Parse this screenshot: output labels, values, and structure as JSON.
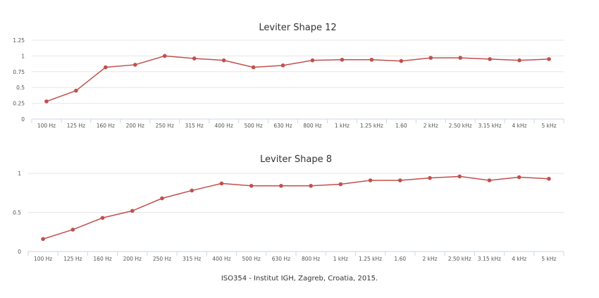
{
  "caption": "ISO354 - Institut IGH, Zagreb, Croatia, 2015.",
  "colors": {
    "series": "#c0504d",
    "grid": "#e6e6e6",
    "axis": "#ccd6eb"
  },
  "chart_data": [
    {
      "type": "line",
      "title": "Leviter Shape 12",
      "categories": [
        "100 Hz",
        "125 Hz",
        "160 Hz",
        "200 Hz",
        "250 Hz",
        "315 Hz",
        "400 Hz",
        "500 Hz",
        "630 Hz",
        "800 Hz",
        "1 kHz",
        "1.25 kHz",
        "1.60",
        "2 kHz",
        "2.50 kHz",
        "3.15 kHz",
        "4 kHz",
        "5 kHz"
      ],
      "series": [
        {
          "values": [
            0.28,
            0.45,
            0.82,
            0.86,
            1.0,
            0.96,
            0.93,
            0.82,
            0.85,
            0.93,
            0.94,
            0.94,
            0.92,
            0.97,
            0.97,
            0.95,
            0.93,
            0.95
          ]
        }
      ],
      "ylim": [
        0,
        1.25
      ],
      "yticks": [
        0,
        0.25,
        0.5,
        0.75,
        1,
        1.25
      ],
      "ytick_labels": [
        "0",
        "0.25",
        "0.5",
        "0.75",
        "1",
        "1.25"
      ],
      "grid": true,
      "legend": "none"
    },
    {
      "type": "line",
      "title": "Leviter Shape 8",
      "categories": [
        "100 Hz",
        "125 Hz",
        "160 Hz",
        "200 Hz",
        "250 Hz",
        "315 Hz",
        "400 Hz",
        "500 Hz",
        "630 Hz",
        "800 Hz",
        "1 kHz",
        "1.25 kHz",
        "1.60",
        "2 kHz",
        "2.50 kHz",
        "3.15 kHz",
        "4 kHz",
        "5 kHz"
      ],
      "series": [
        {
          "values": [
            0.16,
            0.28,
            0.43,
            0.52,
            0.68,
            0.78,
            0.87,
            0.84,
            0.84,
            0.84,
            0.86,
            0.91,
            0.91,
            0.94,
            0.96,
            0.91,
            0.95,
            0.93
          ]
        }
      ],
      "ylim": [
        0,
        1
      ],
      "yticks": [
        0,
        0.5,
        1
      ],
      "ytick_labels": [
        "0",
        "0.5",
        "1"
      ],
      "grid": true,
      "legend": "none"
    }
  ]
}
